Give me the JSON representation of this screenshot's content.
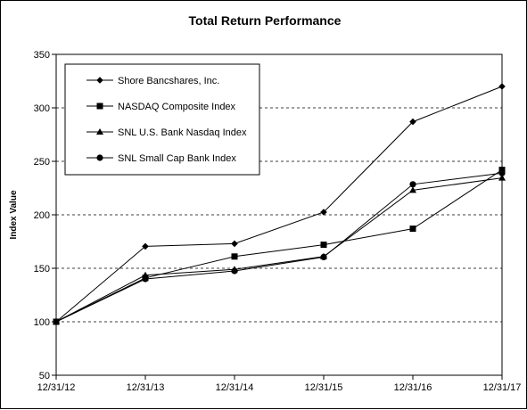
{
  "chart_data": {
    "type": "line",
    "title": "Total Return Performance",
    "xlabel": "",
    "ylabel": "Index Value",
    "categories": [
      "12/31/12",
      "12/31/13",
      "12/31/14",
      "12/31/15",
      "12/31/16",
      "12/31/17"
    ],
    "ylim": [
      50,
      350
    ],
    "yticks": [
      50,
      100,
      150,
      200,
      250,
      300,
      350
    ],
    "grid": "horizontal-dashed",
    "legend_position": "top-left",
    "series": [
      {
        "name": "Shore Bancshares, Inc.",
        "marker": "diamond",
        "color": "#000000",
        "values": [
          100,
          170.5,
          173,
          202.5,
          287,
          320
        ]
      },
      {
        "name": "NASDAQ Composite Index",
        "marker": "square",
        "color": "#000000",
        "values": [
          100,
          141,
          161,
          172,
          187,
          242
        ]
      },
      {
        "name": "SNL U.S. Bank Nasdaq Index",
        "marker": "triangle",
        "color": "#000000",
        "values": [
          100,
          143.5,
          149,
          161,
          223,
          234.5
        ]
      },
      {
        "name": "SNL Small Cap Bank Index",
        "marker": "circle",
        "color": "#000000",
        "values": [
          100,
          140,
          147.5,
          160.5,
          228.5,
          239
        ]
      }
    ]
  }
}
